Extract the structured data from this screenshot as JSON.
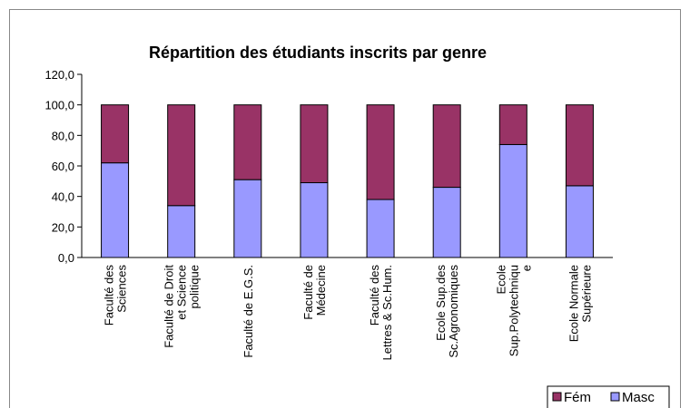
{
  "chart_data": {
    "type": "stacked_bar",
    "title": "Répartition des étudiants inscrits par genre",
    "categories": [
      [
        "Faculté des",
        "Sciences"
      ],
      [
        "Faculté de Droit",
        "et Science",
        "politique"
      ],
      [
        "Faculté de E.G.S."
      ],
      [
        "Faculté de",
        "Médecine"
      ],
      [
        "Faculté des",
        "Lettres & Sc.Hum."
      ],
      [
        "Ecole Sup.des",
        "Sc.Agronomiques"
      ],
      [
        "Ecole",
        "Sup.Polytechniqu",
        "e"
      ],
      [
        "Ecole Normale",
        "Supérieure"
      ]
    ],
    "series": [
      {
        "name": "Masc",
        "color": "#9999ff",
        "values": [
          62,
          34,
          51,
          49,
          38,
          46,
          74,
          47
        ]
      },
      {
        "name": "Fém",
        "color": "#993366",
        "values": [
          38,
          66,
          49,
          51,
          62,
          54,
          26,
          53
        ]
      }
    ],
    "ylim": [
      0,
      120
    ],
    "yticks": [
      {
        "value": 0,
        "label": "0,0"
      },
      {
        "value": 20,
        "label": "20,0"
      },
      {
        "value": 40,
        "label": "40,0"
      },
      {
        "value": 60,
        "label": "60,0"
      },
      {
        "value": 80,
        "label": "80,0"
      },
      {
        "value": 100,
        "label": "100,0"
      },
      {
        "value": 120,
        "label": "120,0"
      }
    ],
    "legend": "bottom-right"
  }
}
